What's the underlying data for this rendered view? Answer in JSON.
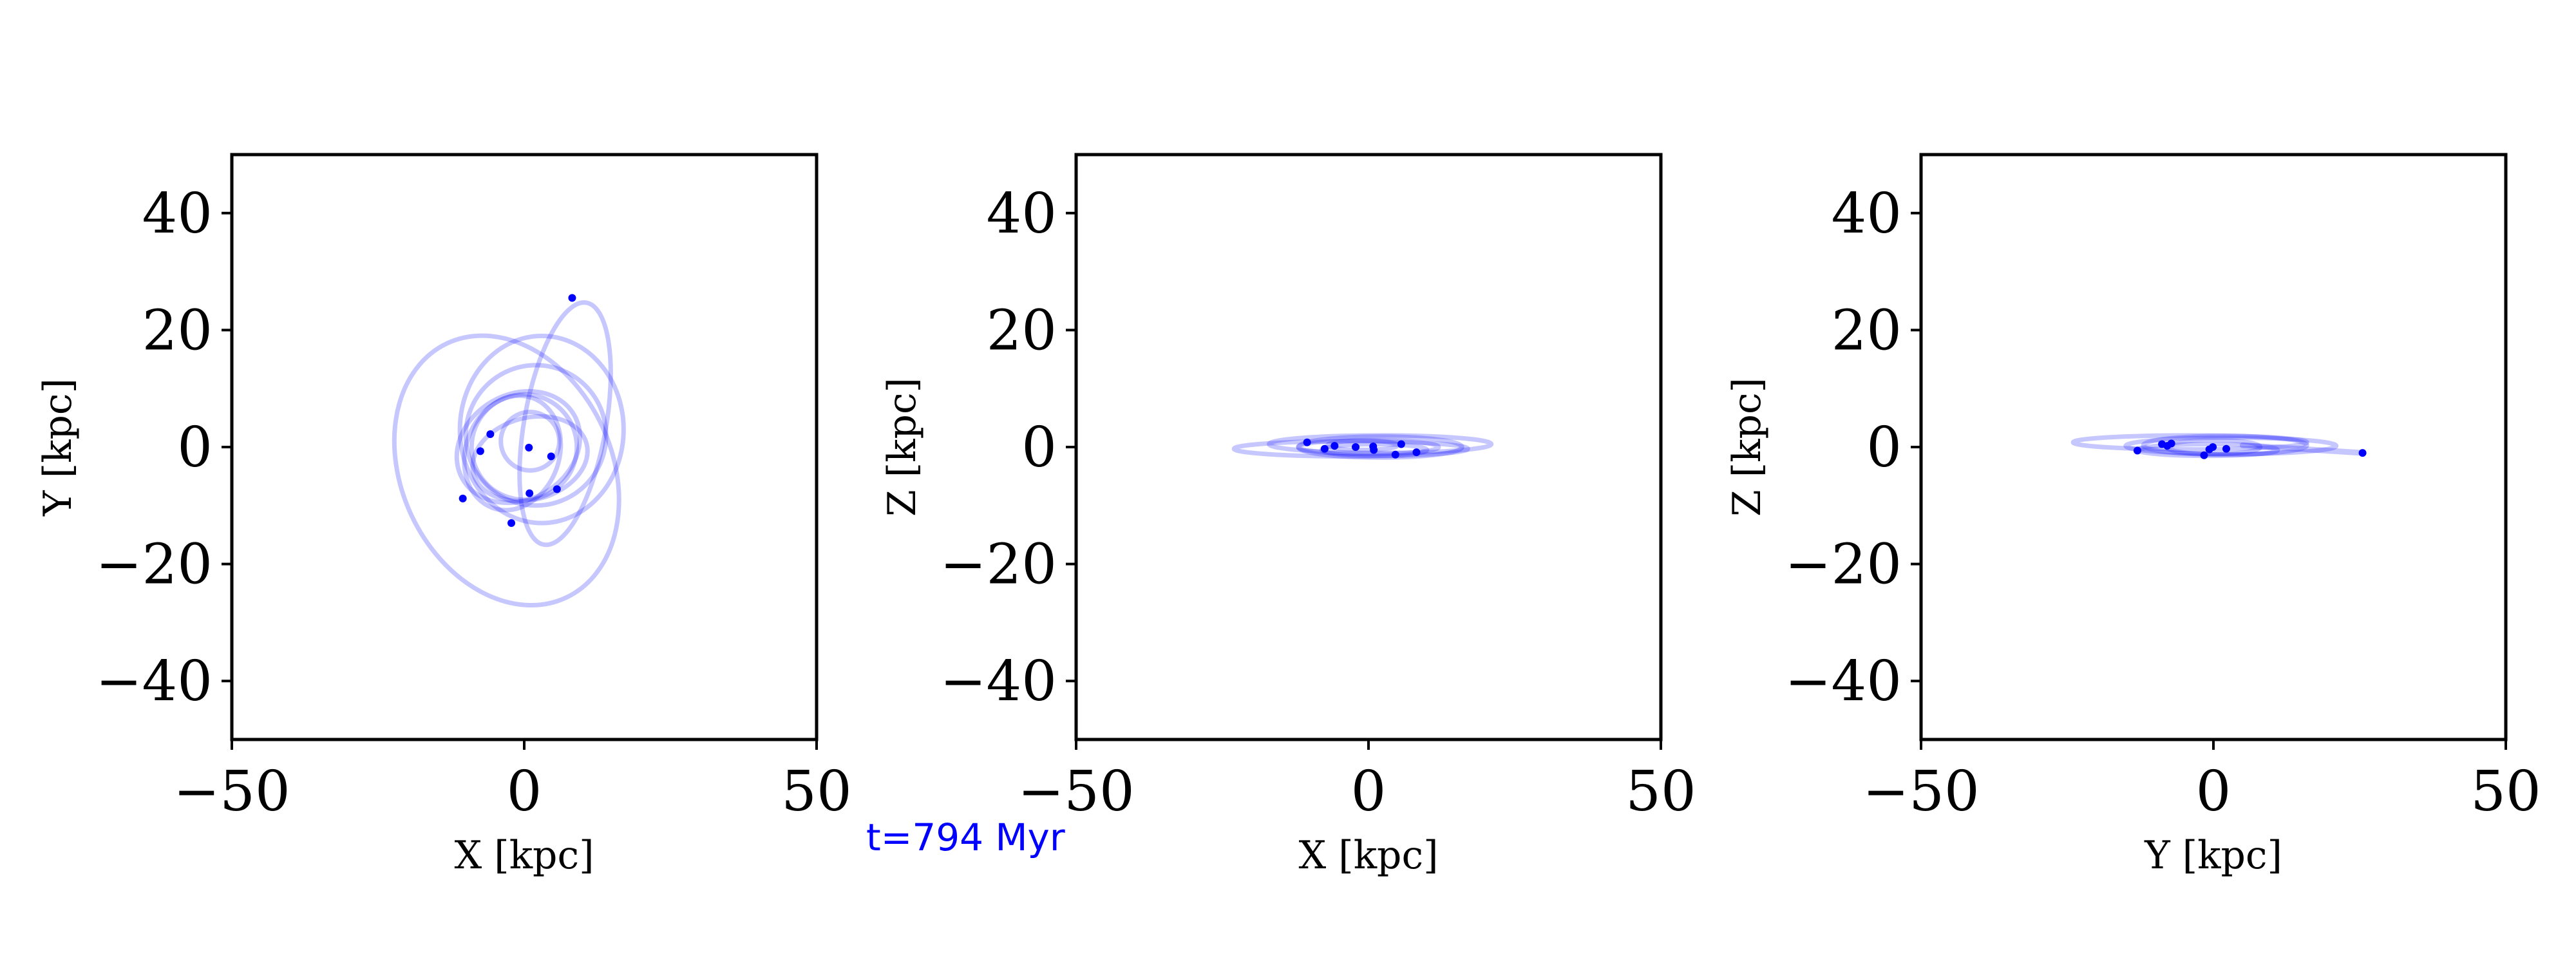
{
  "time_label": "t=794 Myr",
  "colors": {
    "orbit": "#0000ff",
    "time_label": "#0000ff",
    "axes": "#000000"
  },
  "chart_data": [
    {
      "type": "scatter",
      "xlabel": "X [kpc]",
      "ylabel": "Y [kpc]",
      "xlim": [
        -50,
        50
      ],
      "ylim": [
        -50,
        50
      ],
      "xticks": [
        -50,
        0,
        50
      ],
      "yticks": [
        -40,
        -20,
        0,
        20,
        40
      ],
      "xtick_labels": [
        "−50",
        "0",
        "50"
      ],
      "ytick_labels": [
        "−40",
        "−20",
        "0",
        "20",
        "40"
      ],
      "grid": false,
      "points": [
        {
          "x": 8.2,
          "y": 25.5
        },
        {
          "x": -5.8,
          "y": 2.2
        },
        {
          "x": -7.5,
          "y": -0.7
        },
        {
          "x": 0.8,
          "y": -0.1
        },
        {
          "x": 4.6,
          "y": -1.6
        },
        {
          "x": -10.5,
          "y": -8.8
        },
        {
          "x": 5.6,
          "y": -7.2
        },
        {
          "x": 0.9,
          "y": -7.9
        },
        {
          "x": -2.2,
          "y": -13.0
        }
      ],
      "trails": [
        {
          "cx": 7,
          "cy": 4,
          "rx": 7,
          "ry": 21,
          "rot": -10
        },
        {
          "cx": -3,
          "cy": -4,
          "rx": 18,
          "ry": 24,
          "rot": 25
        },
        {
          "cx": 0,
          "cy": 0,
          "rx": 9,
          "ry": 9,
          "rot": 0
        },
        {
          "cx": 1,
          "cy": 1,
          "rx": 5,
          "ry": 5,
          "rot": 0
        },
        {
          "cx": 2,
          "cy": 2,
          "rx": 12,
          "ry": 12,
          "rot": 0
        },
        {
          "cx": -1,
          "cy": 0,
          "rx": 11,
          "ry": 9,
          "rot": 30
        },
        {
          "cx": 3,
          "cy": 3,
          "rx": 14,
          "ry": 16,
          "rot": 0
        },
        {
          "cx": -2,
          "cy": -1,
          "rx": 8,
          "ry": 10,
          "rot": -20
        },
        {
          "cx": 1,
          "cy": -2,
          "rx": 10,
          "ry": 7,
          "rot": 15
        }
      ]
    },
    {
      "type": "scatter",
      "xlabel": "X [kpc]",
      "ylabel": "Z [kpc]",
      "xlim": [
        -50,
        50
      ],
      "ylim": [
        -50,
        50
      ],
      "xticks": [
        -50,
        0,
        50
      ],
      "yticks": [
        -40,
        -20,
        0,
        20,
        40
      ],
      "xtick_labels": [
        "−50",
        "0",
        "50"
      ],
      "ytick_labels": [
        "−40",
        "−20",
        "0",
        "20",
        "40"
      ],
      "grid": false,
      "points": [
        {
          "x": -10.5,
          "y": 0.8
        },
        {
          "x": -7.5,
          "y": -0.3
        },
        {
          "x": -5.8,
          "y": 0.2
        },
        {
          "x": -2.2,
          "y": 0.0
        },
        {
          "x": 0.8,
          "y": 0.1
        },
        {
          "x": 0.9,
          "y": -0.5
        },
        {
          "x": 4.6,
          "y": -1.3
        },
        {
          "x": 5.6,
          "y": 0.5
        },
        {
          "x": 8.2,
          "y": -0.9
        }
      ],
      "trails": [
        {
          "cx": -3,
          "cy": -0.3,
          "rx": 20,
          "ry": 1.3,
          "rot": 0
        },
        {
          "cx": 2,
          "cy": 0.5,
          "rx": 19,
          "ry": 1.5,
          "rot": 0
        },
        {
          "cx": 0,
          "cy": 0,
          "rx": 12,
          "ry": 1.2,
          "rot": 0
        },
        {
          "cx": 1,
          "cy": -0.5,
          "rx": 9,
          "ry": 1.0,
          "rot": 0
        },
        {
          "cx": -1,
          "cy": 0.3,
          "rx": 6,
          "ry": 0.8,
          "rot": 0
        },
        {
          "cx": 2,
          "cy": 0,
          "rx": 14,
          "ry": 1.8,
          "rot": 0
        }
      ]
    },
    {
      "type": "scatter",
      "xlabel": "Y [kpc]",
      "ylabel": "Z [kpc]",
      "xlim": [
        -50,
        50
      ],
      "ylim": [
        -50,
        50
      ],
      "xticks": [
        -50,
        0,
        50
      ],
      "yticks": [
        -40,
        -20,
        0,
        20,
        40
      ],
      "xtick_labels": [
        "−50",
        "0",
        "50"
      ],
      "ytick_labels": [
        "−40",
        "−20",
        "0",
        "20",
        "40"
      ],
      "grid": false,
      "points": [
        {
          "x": -13.0,
          "y": -0.6
        },
        {
          "x": -8.8,
          "y": 0.5
        },
        {
          "x": -7.9,
          "y": 0.2
        },
        {
          "x": -7.2,
          "y": 0.6
        },
        {
          "x": -1.6,
          "y": -1.4
        },
        {
          "x": -0.7,
          "y": -0.4
        },
        {
          "x": -0.1,
          "y": 0.0
        },
        {
          "x": 2.2,
          "y": -0.3
        },
        {
          "x": 25.5,
          "y": -1.0
        }
      ],
      "trails": [
        {
          "cx": -4,
          "cy": 0.8,
          "rx": 20,
          "ry": 1.2,
          "rot": 0
        },
        {
          "cx": 3,
          "cy": 0.2,
          "rx": 18,
          "ry": 1.4,
          "rot": 0
        },
        {
          "cx": -1,
          "cy": -0.5,
          "rx": 12,
          "ry": 1.0,
          "rot": 0
        },
        {
          "cx": 0,
          "cy": 0,
          "rx": 8,
          "ry": 1.2,
          "rot": 0
        },
        {
          "cx": 2,
          "cy": 0.3,
          "rx": 14,
          "ry": 1.6,
          "rot": 0
        },
        {
          "x1": 5,
          "y1": 0.3,
          "x2": 25.5,
          "y2": -1.0
        }
      ]
    }
  ]
}
